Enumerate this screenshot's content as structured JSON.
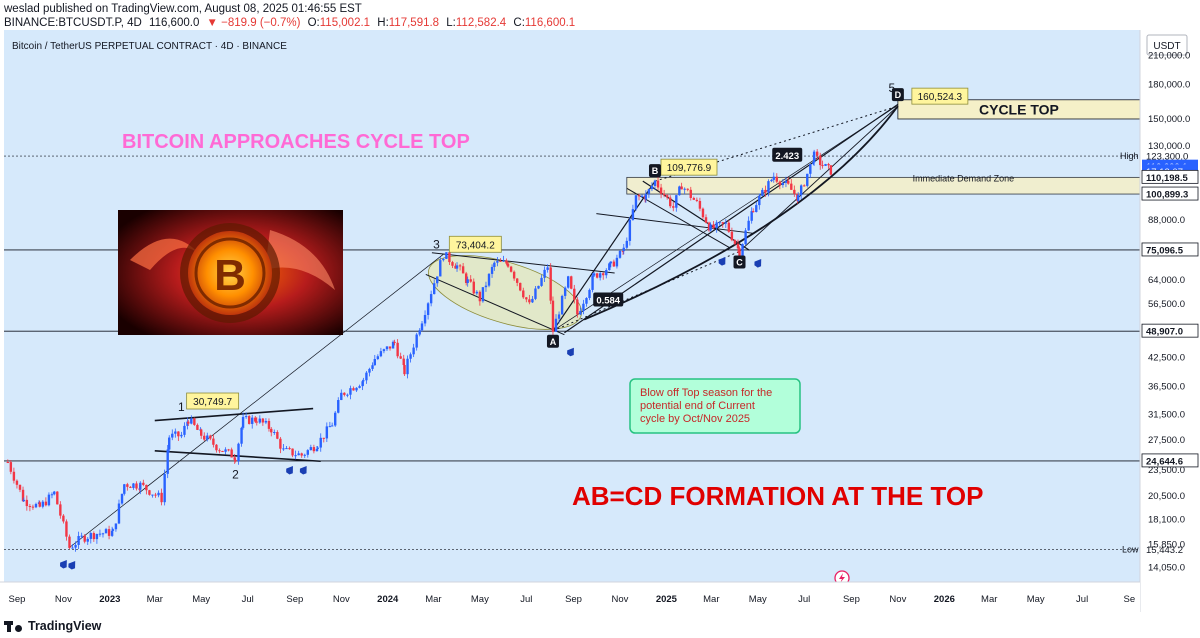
{
  "header": {
    "line1": "weslad published on TradingView.com, August 08, 2025 01:46:55 EST",
    "symbol": "BINANCE:BTCUSDT.P, 4D",
    "last": "116,600.0",
    "change": "▼ −819.9 (−0.7%)",
    "o_label": "O:",
    "o": "115,002.1",
    "h_label": "H:",
    "h": "117,591.8",
    "l_label": "L:",
    "l": "112,582.4",
    "c_label": "C:",
    "c": "116,600.1"
  },
  "chart_title": "Bitcoin / TetherUS PERPETUAL CONTRACT · 4D · BINANCE",
  "currency": "USDT",
  "colors": {
    "background": "#d6e9fb",
    "up": "#2962ff",
    "down": "#f23645",
    "headline_pink": "#ff6ad5",
    "headline_red": "#e00000",
    "zone_fill": "#f5f0c8",
    "label_yellow": "#fff59d",
    "note_fill": "#b2ffda",
    "note_border": "#26c281"
  },
  "annotations": {
    "headline": "BITCOIN APPROACHES CYCLE TOP",
    "formation": "AB=CD FORMATION AT THE TOP",
    "cycle_top": "CYCLE TOP",
    "demand_zone": "Immediate Demand Zone",
    "note": [
      "Blow off Top season for the",
      "potential end of Current",
      "cycle by Oct/Nov 2025"
    ],
    "ratio_ab": "0.584",
    "ratio_cd": "2.423",
    "wave_1": "1",
    "wave_2": "2",
    "wave_3": "3",
    "wave_5": "5",
    "pt_A": "A",
    "pt_B": "B",
    "pt_C": "C",
    "pt_D": "D",
    "label_1": "30,749.7",
    "label_3": "73,404.2",
    "label_B": "109,776.9",
    "label_D": "160,524.3",
    "high_label": "High",
    "low_label": "Low",
    "rocket_icon": "rocket-icon",
    "btc_image_letter": "B"
  },
  "footer": {
    "brand": "TradingView"
  },
  "chart_data": {
    "type": "candlestick",
    "title": "Bitcoin / TetherUS PERPETUAL CONTRACT · 4D · BINANCE",
    "scale": "log",
    "ylim": [
      13000,
      240000
    ],
    "y_ticks": [
      "210,000.0",
      "180,000.0",
      "150,000.0",
      "130,000.0",
      "88,000.0",
      "64,000.0",
      "56,500.0",
      "42,500.0",
      "36,500.0",
      "31,500.0",
      "27,500.0",
      "23,500.0",
      "20,500.0",
      "18,100.0",
      "15,850.0",
      "14,050.0"
    ],
    "y_tick_values": [
      210000,
      180000,
      150000,
      130000,
      88000,
      64000,
      56500,
      42500,
      36500,
      31500,
      27500,
      23500,
      20500,
      18100,
      15850,
      14050
    ],
    "x_ticks": [
      "Sep",
      "Nov",
      "2023",
      "Mar",
      "May",
      "Jul",
      "Sep",
      "Nov",
      "2024",
      "Mar",
      "May",
      "Jul",
      "Sep",
      "Nov",
      "2025",
      "Mar",
      "May",
      "Jul",
      "Sep",
      "Nov",
      "2026",
      "Mar",
      "May",
      "Jul",
      "Se"
    ],
    "x_tick_dates": [
      "2022-09-01",
      "2022-11-01",
      "2023-01-01",
      "2023-03-01",
      "2023-05-01",
      "2023-07-01",
      "2023-09-01",
      "2023-11-01",
      "2024-01-01",
      "2024-03-01",
      "2024-05-01",
      "2024-07-01",
      "2024-09-01",
      "2024-11-01",
      "2025-01-01",
      "2025-03-01",
      "2025-05-01",
      "2025-07-01",
      "2025-09-01",
      "2025-11-01",
      "2026-01-01",
      "2026-03-01",
      "2026-05-01",
      "2026-07-01",
      "2026-09-01"
    ],
    "price_labels": [
      {
        "label": "123,300.0",
        "value": 123300,
        "style": "plain"
      },
      {
        "label": "116,600.1",
        "value": 116600,
        "style": "blue"
      },
      {
        "label": "17:13:07",
        "value": 113800,
        "style": "blue"
      },
      {
        "label": "110,198.5",
        "value": 110198,
        "style": "boxed"
      },
      {
        "label": "100,899.3",
        "value": 100899,
        "style": "boxed"
      },
      {
        "label": "75,096.5",
        "value": 75096,
        "style": "boxed"
      },
      {
        "label": "48,907.0",
        "value": 48907,
        "style": "boxed"
      },
      {
        "label": "24,644.6",
        "value": 24644,
        "style": "boxed"
      },
      {
        "label": "15,443.2",
        "value": 15443,
        "style": "plain"
      }
    ],
    "horizontal_levels": [
      123300,
      75096,
      48907,
      24644,
      15443
    ],
    "zones": [
      {
        "name": "cycle-top",
        "from": 150000,
        "to": 166000,
        "start": "2025-11-01"
      },
      {
        "name": "demand-zone",
        "from": 100899,
        "to": 110198,
        "start": "2024-11-10"
      }
    ],
    "points": {
      "A": {
        "date": "2024-08-05",
        "value": 49000
      },
      "B": {
        "date": "2024-12-17",
        "value": 108000
      },
      "C": {
        "date": "2025-04-07",
        "value": 74500
      },
      "D": {
        "date": "2025-11-01",
        "value": 160524
      }
    },
    "series": [
      {
        "name": "BTCUSDT.P",
        "points": [
          [
            "2022-08-20",
            24500
          ],
          [
            "2022-09-10",
            20000
          ],
          [
            "2022-10-01",
            19300
          ],
          [
            "2022-10-20",
            20800
          ],
          [
            "2022-11-09",
            15600
          ],
          [
            "2022-11-25",
            16400
          ],
          [
            "2022-12-15",
            16800
          ],
          [
            "2023-01-05",
            16900
          ],
          [
            "2023-01-20",
            21800
          ],
          [
            "2023-02-10",
            21700
          ],
          [
            "2023-03-10",
            20200
          ],
          [
            "2023-03-20",
            28000
          ],
          [
            "2023-04-05",
            28200
          ],
          [
            "2023-04-14",
            30700
          ],
          [
            "2023-05-01",
            28300
          ],
          [
            "2023-05-25",
            26300
          ],
          [
            "2023-06-15",
            25200
          ],
          [
            "2023-06-25",
            30500
          ],
          [
            "2023-07-13",
            30700
          ],
          [
            "2023-08-01",
            29200
          ],
          [
            "2023-08-17",
            26000
          ],
          [
            "2023-09-10",
            25400
          ],
          [
            "2023-10-01",
            27000
          ],
          [
            "2023-10-20",
            30000
          ],
          [
            "2023-11-01",
            35000
          ],
          [
            "2023-11-30",
            37800
          ],
          [
            "2023-12-15",
            42300
          ],
          [
            "2024-01-10",
            46000
          ],
          [
            "2024-01-23",
            39500
          ],
          [
            "2024-02-15",
            52000
          ],
          [
            "2024-03-14",
            73400
          ],
          [
            "2024-04-01",
            69000
          ],
          [
            "2024-04-15",
            63500
          ],
          [
            "2024-05-01",
            58000
          ],
          [
            "2024-05-20",
            70000
          ],
          [
            "2024-06-07",
            70000
          ],
          [
            "2024-07-05",
            56000
          ],
          [
            "2024-07-29",
            69000
          ],
          [
            "2024-08-05",
            49000
          ],
          [
            "2024-08-25",
            64000
          ],
          [
            "2024-09-06",
            53500
          ],
          [
            "2024-09-28",
            65500
          ],
          [
            "2024-10-20",
            69000
          ],
          [
            "2024-11-06",
            75000
          ],
          [
            "2024-11-22",
            99000
          ],
          [
            "2024-12-05",
            100000
          ],
          [
            "2024-12-17",
            108000
          ],
          [
            "2025-01-10",
            94000
          ],
          [
            "2025-01-21",
            106000
          ],
          [
            "2025-02-10",
            96000
          ],
          [
            "2025-02-28",
            84000
          ],
          [
            "2025-03-20",
            86000
          ],
          [
            "2025-04-07",
            74500
          ],
          [
            "2025-04-25",
            94000
          ],
          [
            "2025-05-22",
            111000
          ],
          [
            "2025-06-10",
            105000
          ],
          [
            "2025-06-23",
            99000
          ],
          [
            "2025-07-14",
            123300
          ],
          [
            "2025-07-25",
            117500
          ],
          [
            "2025-08-05",
            114000
          ],
          [
            "2025-08-08",
            116600
          ]
        ]
      }
    ],
    "x_range": [
      "2022-08-15",
      "2026-09-15"
    ]
  }
}
